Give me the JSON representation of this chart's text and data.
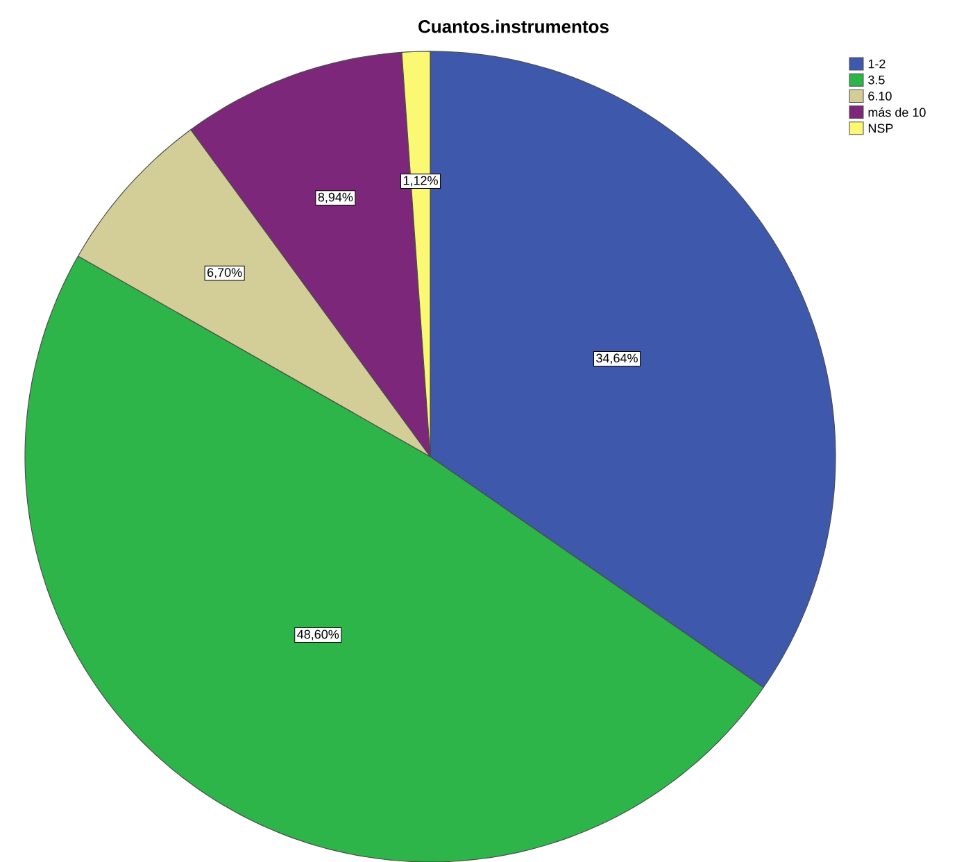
{
  "chart_data": {
    "type": "pie",
    "title": "Cuantos.instrumentos",
    "categories": [
      "1-2",
      "3.5",
      "6.10",
      "más de 10",
      "NSP"
    ],
    "values": [
      34.64,
      48.6,
      6.7,
      8.94,
      1.12
    ],
    "value_labels": [
      "34,64%",
      "48,60%",
      "6,70%",
      "8,94%",
      "1,12%"
    ],
    "colors": [
      "#3e58ac",
      "#2db54a",
      "#d3ce97",
      "#7c2779",
      "#fbf873"
    ],
    "legend": "top right"
  }
}
